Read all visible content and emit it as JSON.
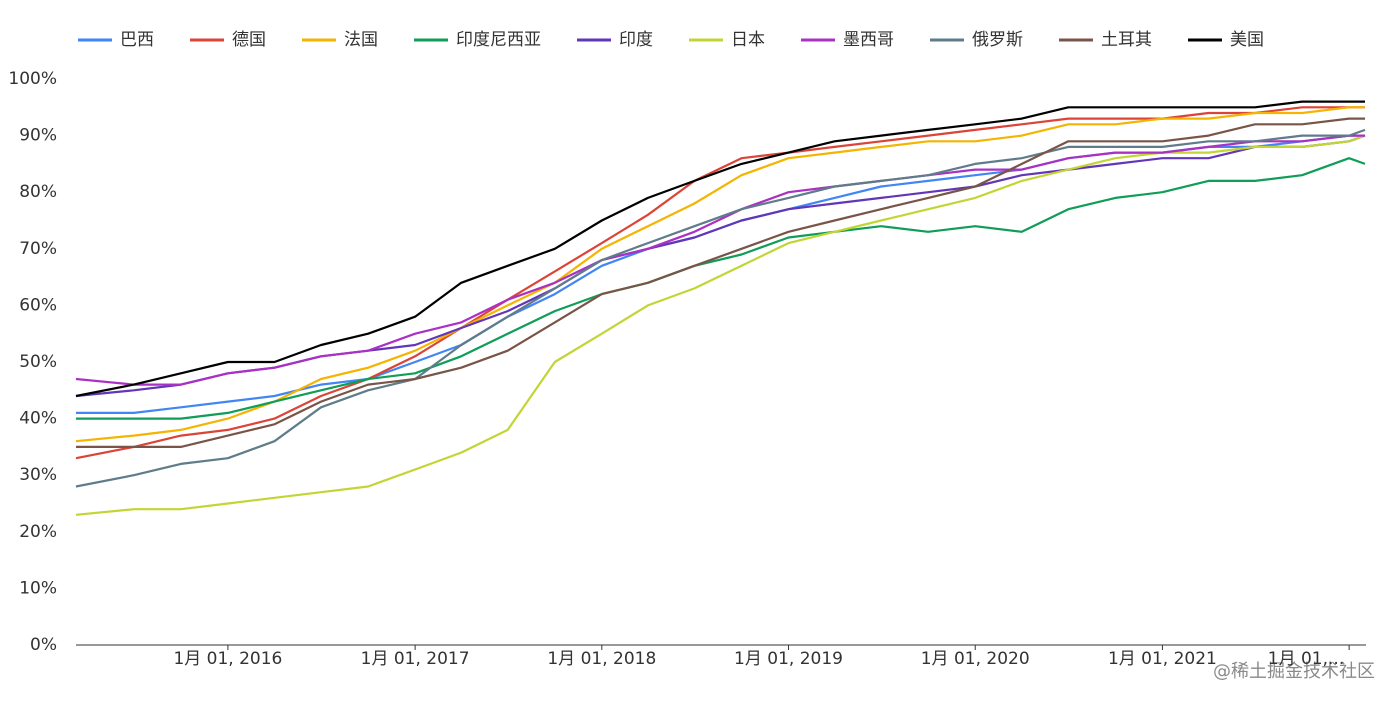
{
  "chart_data": {
    "type": "line",
    "x": [
      "2015-03-10",
      "2015-07-01",
      "2015-10-01",
      "2016-01-01",
      "2016-04-01",
      "2016-07-01",
      "2016-10-01",
      "2017-01-01",
      "2017-04-01",
      "2017-07-01",
      "2017-10-01",
      "2018-01-01",
      "2018-04-01",
      "2018-07-01",
      "2018-10-01",
      "2019-01-01",
      "2019-04-01",
      "2019-07-01",
      "2019-10-01",
      "2020-01-01",
      "2020-04-01",
      "2020-07-01",
      "2020-10-01",
      "2021-01-01",
      "2021-04-01",
      "2021-07-01",
      "2021-10-01",
      "2022-01-01",
      "2022-02-01"
    ],
    "series": [
      {
        "name": "巴西",
        "color": "#4285f4",
        "values": [
          41,
          41,
          42,
          43,
          44,
          46,
          47,
          50,
          53,
          58,
          62,
          67,
          70,
          72,
          75,
          77,
          79,
          81,
          82,
          83,
          84,
          86,
          87,
          87,
          88,
          88,
          89,
          90,
          90
        ]
      },
      {
        "name": "德国",
        "color": "#db4437",
        "values": [
          33,
          35,
          37,
          38,
          40,
          44,
          47,
          51,
          56,
          61,
          66,
          71,
          76,
          82,
          86,
          87,
          88,
          89,
          90,
          91,
          92,
          93,
          93,
          93,
          94,
          94,
          95,
          95,
          95
        ]
      },
      {
        "name": "法国",
        "color": "#f4b400",
        "values": [
          36,
          37,
          38,
          40,
          43,
          47,
          49,
          52,
          56,
          60,
          64,
          70,
          74,
          78,
          83,
          86,
          87,
          88,
          89,
          89,
          90,
          92,
          92,
          93,
          93,
          94,
          94,
          95,
          95
        ]
      },
      {
        "name": "印度尼西亚",
        "color": "#0f9d58",
        "values": [
          40,
          40,
          40,
          41,
          43,
          45,
          47,
          48,
          51,
          55,
          59,
          62,
          64,
          67,
          69,
          72,
          73,
          74,
          73,
          74,
          73,
          77,
          79,
          80,
          82,
          82,
          83,
          86,
          85
        ]
      },
      {
        "name": "印度",
        "color": "#6236b8",
        "values": [
          44,
          45,
          46,
          48,
          49,
          51,
          52,
          53,
          56,
          59,
          63,
          68,
          70,
          72,
          75,
          77,
          78,
          79,
          80,
          81,
          83,
          84,
          85,
          86,
          86,
          88,
          88,
          89,
          90
        ]
      },
      {
        "name": "日本",
        "color": "#c3d534",
        "values": [
          23,
          24,
          24,
          25,
          26,
          27,
          28,
          31,
          34,
          38,
          50,
          55,
          60,
          63,
          67,
          71,
          73,
          75,
          77,
          79,
          82,
          84,
          86,
          87,
          87,
          88,
          88,
          89,
          90
        ]
      },
      {
        "name": "墨西哥",
        "color": "#ab30c4",
        "values": [
          47,
          46,
          46,
          48,
          49,
          51,
          52,
          55,
          57,
          61,
          64,
          68,
          70,
          73,
          77,
          80,
          81,
          82,
          83,
          84,
          84,
          86,
          87,
          87,
          88,
          89,
          89,
          90,
          90
        ]
      },
      {
        "name": "俄罗斯",
        "color": "#5f7c8a",
        "values": [
          28,
          30,
          32,
          33,
          36,
          42,
          45,
          47,
          53,
          58,
          63,
          68,
          71,
          74,
          77,
          79,
          81,
          82,
          83,
          85,
          86,
          88,
          88,
          88,
          89,
          89,
          90,
          90,
          91
        ]
      },
      {
        "name": "土耳其",
        "color": "#795548",
        "values": [
          35,
          35,
          35,
          37,
          39,
          43,
          46,
          47,
          49,
          52,
          57,
          62,
          64,
          67,
          70,
          73,
          75,
          77,
          79,
          81,
          85,
          89,
          89,
          89,
          90,
          92,
          92,
          93,
          93
        ]
      },
      {
        "name": "美国",
        "color": "#000000",
        "values": [
          44,
          46,
          48,
          50,
          50,
          53,
          55,
          58,
          64,
          67,
          70,
          75,
          79,
          82,
          85,
          87,
          89,
          90,
          91,
          92,
          93,
          95,
          95,
          95,
          95,
          95,
          96,
          96,
          96
        ]
      }
    ],
    "xlim": [
      "2015-03-10",
      "2022-02-03"
    ],
    "xticks": [
      {
        "value": "2016-01-01",
        "label": "1月 01, 2016"
      },
      {
        "value": "2017-01-01",
        "label": "1月 01, 2017"
      },
      {
        "value": "2018-01-01",
        "label": "1月 01, 2018"
      },
      {
        "value": "2019-01-01",
        "label": "1月 01, 2019"
      },
      {
        "value": "2020-01-01",
        "label": "1月 01, 2020"
      },
      {
        "value": "2021-01-01",
        "label": "1月 01, 2021"
      },
      {
        "value": "2022-01-01",
        "label": "1月 01,..."
      }
    ],
    "ylim": [
      0,
      100
    ],
    "yticks": [
      {
        "value": 0,
        "label": "0%"
      },
      {
        "value": 10,
        "label": "10%"
      },
      {
        "value": 20,
        "label": "20%"
      },
      {
        "value": 30,
        "label": "30%"
      },
      {
        "value": 40,
        "label": "40%"
      },
      {
        "value": 50,
        "label": "50%"
      },
      {
        "value": 60,
        "label": "60%"
      },
      {
        "value": 70,
        "label": "70%"
      },
      {
        "value": 80,
        "label": "80%"
      },
      {
        "value": 90,
        "label": "90%"
      },
      {
        "value": 100,
        "label": "100%"
      }
    ],
    "grid": false,
    "legend": "top",
    "watermark": "@稀土掘金技术社区"
  }
}
